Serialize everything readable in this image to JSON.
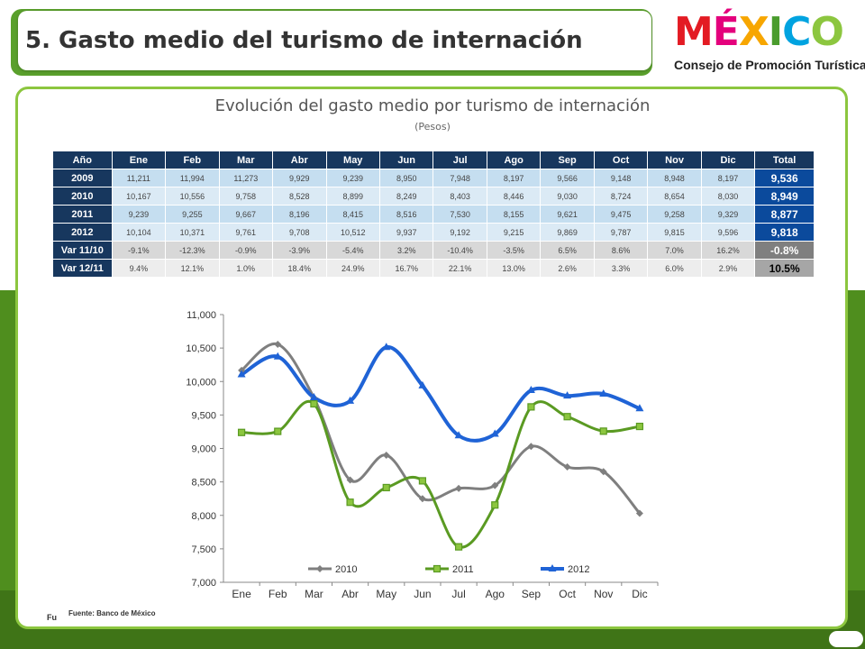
{
  "slide": {
    "title": "5. Gasto medio del turismo de internación",
    "logo": {
      "word": "MÉXICO",
      "subtitle": "Consejo de Promoción Turística",
      "letters": [
        {
          "ch": "M",
          "color": "#e31b23"
        },
        {
          "ch": "É",
          "color": "#e4007c"
        },
        {
          "ch": "X",
          "color": "#f7a600"
        },
        {
          "ch": "I",
          "color": "#4a9c2d"
        },
        {
          "ch": "C",
          "color": "#00a3e0"
        },
        {
          "ch": "O",
          "color": "#8cc63f"
        }
      ]
    },
    "source_edge": "Fu",
    "source": "Fuente: Banco de México"
  },
  "chart_title": "Evolución del gasto medio por turismo de internación",
  "chart_subtitle": "(Pesos)",
  "table": {
    "headers": [
      "Año",
      "Ene",
      "Feb",
      "Mar",
      "Abr",
      "May",
      "Jun",
      "Jul",
      "Ago",
      "Sep",
      "Oct",
      "Nov",
      "Dic",
      "Total"
    ],
    "rows": [
      {
        "label": "2009",
        "values": [
          "11,211",
          "11,994",
          "11,273",
          "9,929",
          "9,239",
          "8,950",
          "7,948",
          "8,197",
          "9,566",
          "9,148",
          "8,948",
          "8,197"
        ],
        "total": "9,536"
      },
      {
        "label": "2010",
        "values": [
          "10,167",
          "10,556",
          "9,758",
          "8,528",
          "8,899",
          "8,249",
          "8,403",
          "8,446",
          "9,030",
          "8,724",
          "8,654",
          "8,030"
        ],
        "total": "8,949"
      },
      {
        "label": "2011",
        "values": [
          "9,239",
          "9,255",
          "9,667",
          "8,196",
          "8,415",
          "8,516",
          "7,530",
          "8,155",
          "9,621",
          "9,475",
          "9,258",
          "9,329"
        ],
        "total": "8,877"
      },
      {
        "label": "2012",
        "values": [
          "10,104",
          "10,371",
          "9,761",
          "9,708",
          "10,512",
          "9,937",
          "9,192",
          "9,215",
          "9,869",
          "9,787",
          "9,815",
          "9,596"
        ],
        "total": "9,818"
      },
      {
        "label": "Var 11/10",
        "values": [
          "-9.1%",
          "-12.3%",
          "-0.9%",
          "-3.9%",
          "-5.4%",
          "3.2%",
          "-10.4%",
          "-3.5%",
          "6.5%",
          "8.6%",
          "7.0%",
          "16.2%"
        ],
        "total": "-0.8%"
      },
      {
        "label": "Var 12/11",
        "values": [
          "9.4%",
          "12.1%",
          "1.0%",
          "18.4%",
          "24.9%",
          "16.7%",
          "22.1%",
          "13.0%",
          "2.6%",
          "3.3%",
          "6.0%",
          "2.9%"
        ],
        "total": "10.5%"
      }
    ]
  },
  "chart_data": {
    "type": "line",
    "categories": [
      "Ene",
      "Feb",
      "Mar",
      "Abr",
      "May",
      "Jun",
      "Jul",
      "Ago",
      "Sep",
      "Oct",
      "Nov",
      "Dic"
    ],
    "series": [
      {
        "name": "2010",
        "color": "#7f7f7f",
        "marker": "diamond",
        "values": [
          10167,
          10556,
          9758,
          8528,
          8899,
          8249,
          8403,
          8446,
          9030,
          8724,
          8654,
          8030
        ]
      },
      {
        "name": "2011",
        "color": "#5a9a22",
        "marker": "square",
        "values": [
          9239,
          9255,
          9667,
          8196,
          8415,
          8516,
          7530,
          8155,
          9621,
          9475,
          9258,
          9329
        ]
      },
      {
        "name": "2012",
        "color": "#1f63d6",
        "marker": "triangle",
        "values": [
          10104,
          10371,
          9761,
          9708,
          10512,
          9937,
          9192,
          9215,
          9869,
          9787,
          9815,
          9596
        ]
      }
    ],
    "ylim": [
      7000,
      11000
    ],
    "yticks": [
      "7,000",
      "7,500",
      "8,000",
      "8,500",
      "9,000",
      "9,500",
      "10,000",
      "10,500",
      "11,000"
    ],
    "ytick_values": [
      7000,
      7500,
      8000,
      8500,
      9000,
      9500,
      10000,
      10500,
      11000
    ],
    "grid": false,
    "legend": "bottom"
  }
}
